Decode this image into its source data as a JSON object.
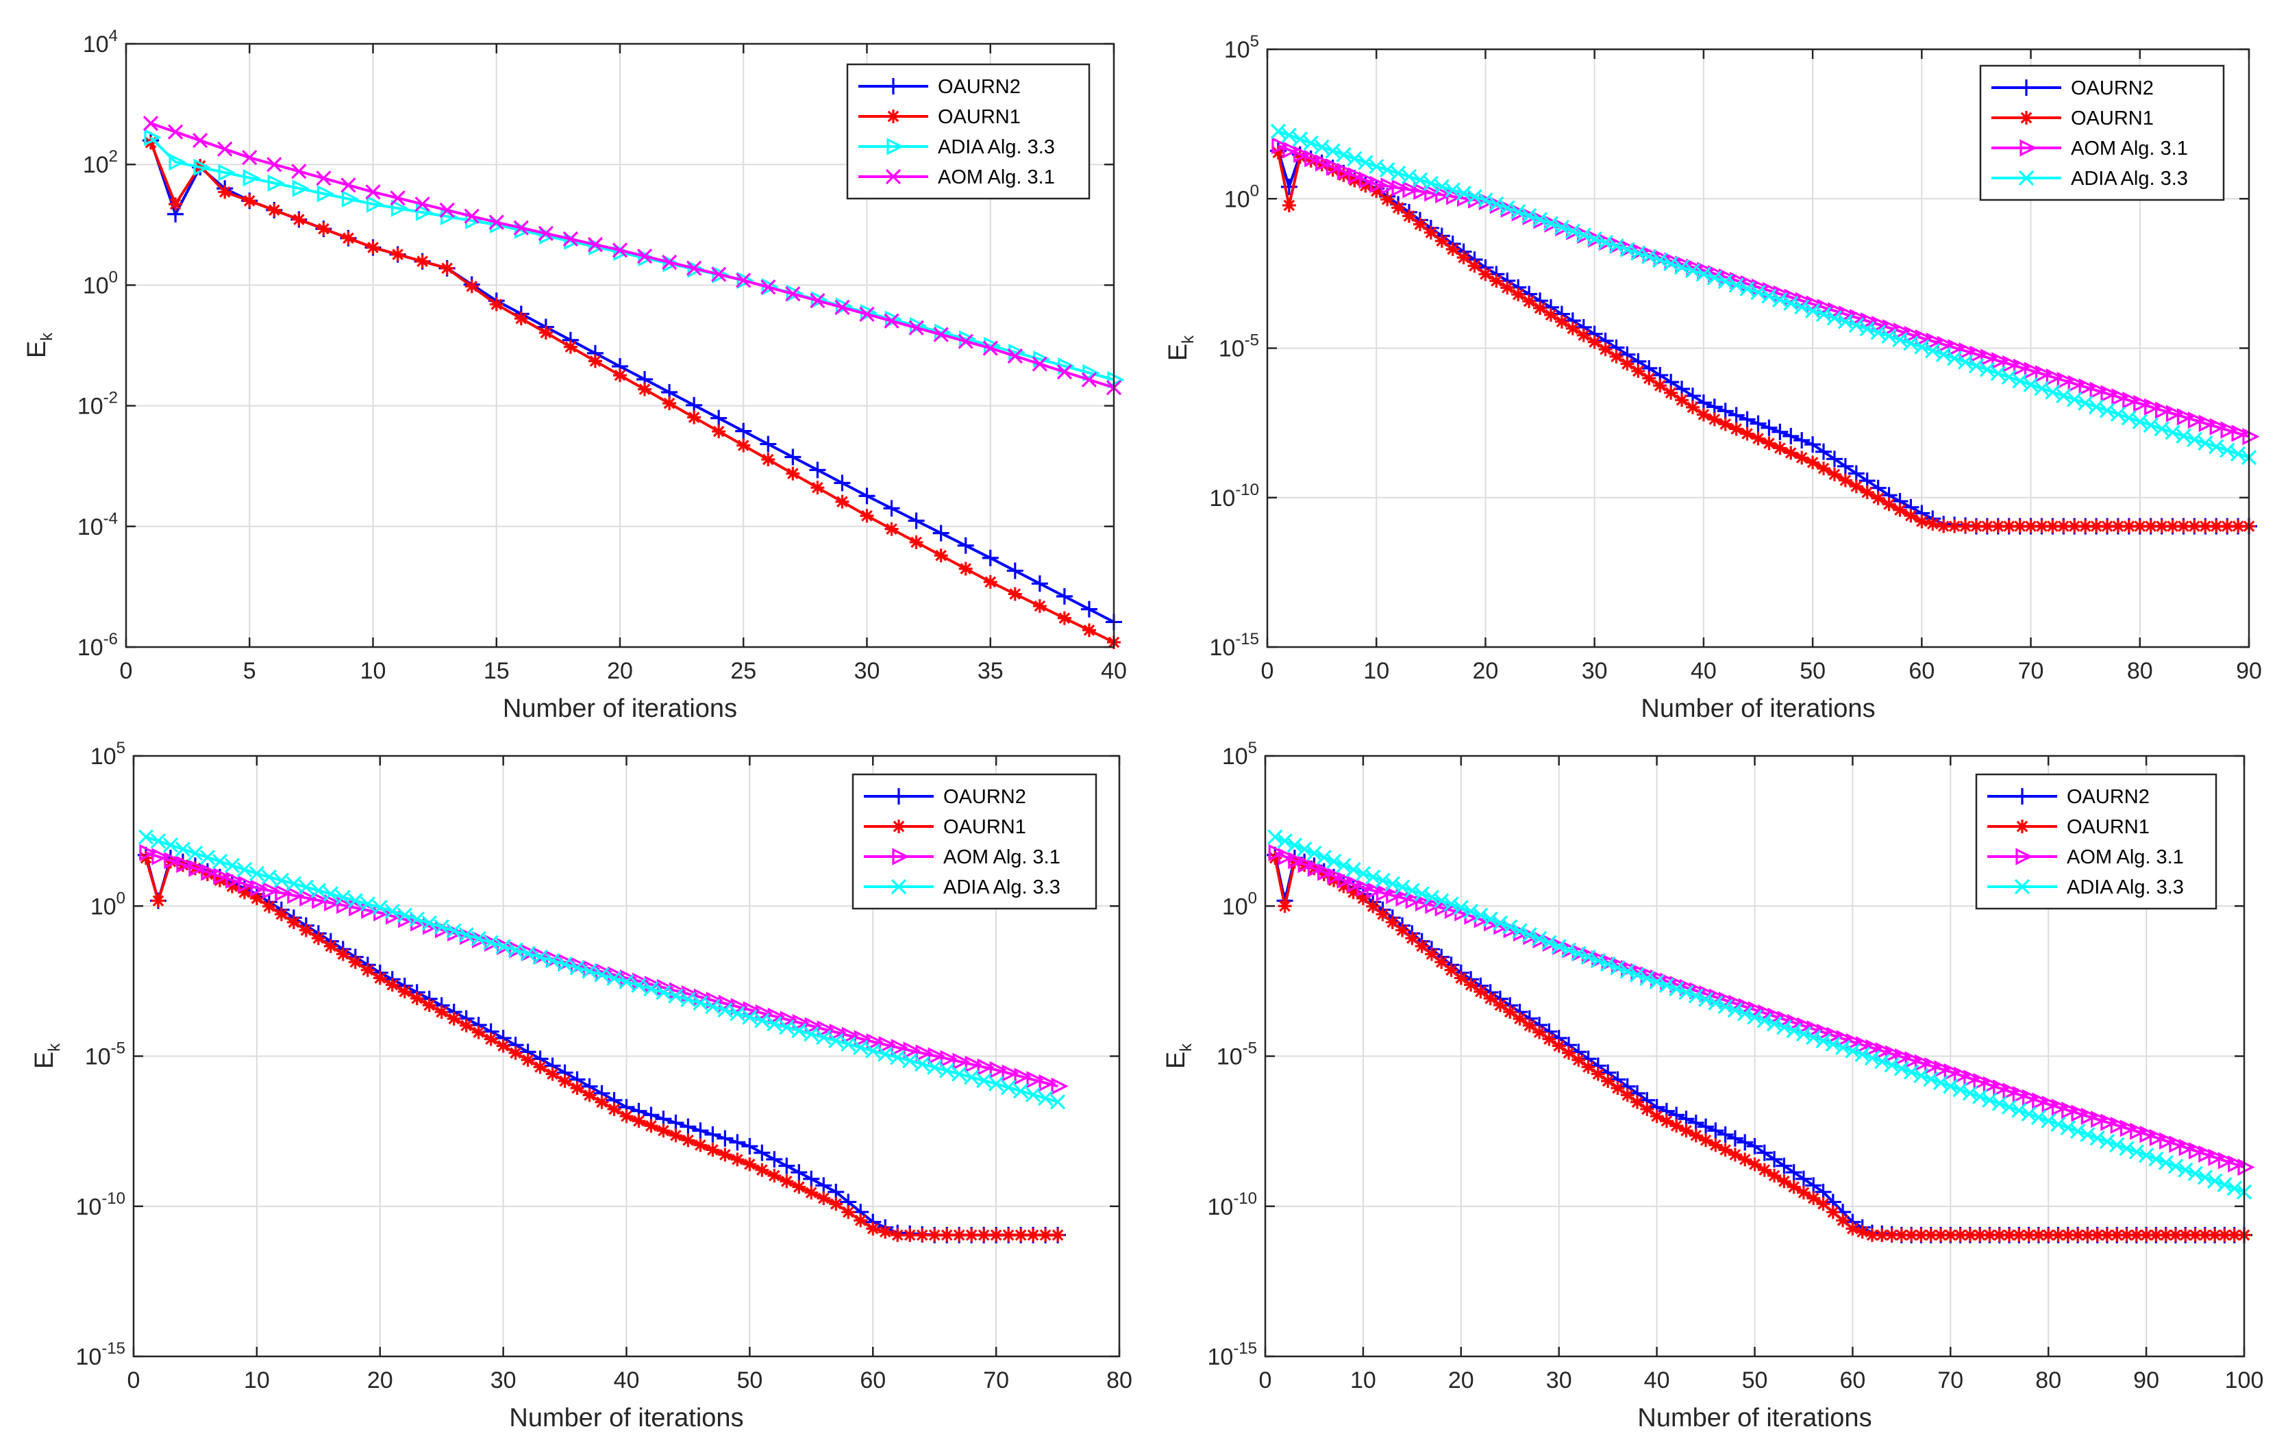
{
  "chart_data": [
    {
      "type": "line",
      "yscale": "log",
      "xlabel": "Number of iterations",
      "ylabel": "E",
      "ylabel_sub": "k",
      "xlim": [
        0,
        40
      ],
      "xticks": [
        0,
        5,
        10,
        15,
        20,
        25,
        30,
        35,
        40
      ],
      "yticks": [
        1e-06,
        0.0001,
        0.01,
        1,
        100,
        10000
      ],
      "ytick_labels": [
        {
          "base": "10",
          "exp": "-6"
        },
        {
          "base": "10",
          "exp": "-4"
        },
        {
          "base": "10",
          "exp": "-2"
        },
        {
          "base": "10",
          "exp": "0"
        },
        {
          "base": "10",
          "exp": "2"
        },
        {
          "base": "10",
          "exp": "4"
        }
      ],
      "grid": true,
      "legend_position": "top-right",
      "series": [
        {
          "name": "OAURN2",
          "color": "#0000ff",
          "marker": "plus",
          "x_start": 1,
          "x_end": 40,
          "anchors": [
            [
              1,
              250
            ],
            [
              2,
              15
            ],
            [
              3,
              90
            ],
            [
              4,
              40
            ],
            [
              5,
              25
            ],
            [
              10,
              4.2
            ],
            [
              13,
              1.9
            ],
            [
              15,
              0.55
            ],
            [
              20,
              0.045
            ],
            [
              25,
              0.0038
            ],
            [
              30,
              0.00032
            ],
            [
              35,
              3e-05
            ],
            [
              40,
              2.6e-06
            ]
          ]
        },
        {
          "name": "OAURN1",
          "color": "#ff0000",
          "marker": "asterisk",
          "x_start": 1,
          "x_end": 40,
          "anchors": [
            [
              1,
              230
            ],
            [
              2,
              22
            ],
            [
              3,
              95
            ],
            [
              4,
              35
            ],
            [
              5,
              25
            ],
            [
              10,
              4.2
            ],
            [
              13,
              1.9
            ],
            [
              15,
              0.48
            ],
            [
              20,
              0.032
            ],
            [
              25,
              0.0022
            ],
            [
              30,
              0.00015
            ],
            [
              35,
              1.2e-05
            ],
            [
              40,
              1.2e-06
            ]
          ]
        },
        {
          "name": "ADIA Alg. 3.3",
          "color": "#00ffff",
          "marker": "triangle-right",
          "x_start": 1,
          "x_end": 40,
          "anchors": [
            [
              1,
              280
            ],
            [
              2,
              110
            ],
            [
              5,
              60
            ],
            [
              10,
              22
            ],
            [
              15,
              10
            ],
            [
              20,
              3.5
            ],
            [
              25,
              1.2
            ],
            [
              30,
              0.35
            ],
            [
              35,
              0.1
            ],
            [
              40,
              0.027
            ]
          ]
        },
        {
          "name": "AOM Alg. 3.1",
          "color": "#ff00ff",
          "marker": "x",
          "x_start": 1,
          "x_end": 40,
          "anchors": [
            [
              1,
              480
            ],
            [
              5,
              130
            ],
            [
              10,
              35
            ],
            [
              15,
              11
            ],
            [
              20,
              3.8
            ],
            [
              25,
              1.2
            ],
            [
              30,
              0.33
            ],
            [
              35,
              0.09
            ],
            [
              40,
              0.02
            ]
          ]
        }
      ]
    },
    {
      "type": "line",
      "yscale": "log",
      "xlabel": "Number of iterations",
      "ylabel": "E",
      "ylabel_sub": "k",
      "xlim": [
        0,
        90
      ],
      "xticks": [
        0,
        10,
        20,
        30,
        40,
        50,
        60,
        70,
        80,
        90
      ],
      "yticks": [
        1e-15,
        1e-10,
        1e-05,
        1,
        100000
      ],
      "ytick_labels": [
        {
          "base": "10",
          "exp": "-15"
        },
        {
          "base": "10",
          "exp": "-10"
        },
        {
          "base": "10",
          "exp": "-5"
        },
        {
          "base": "10",
          "exp": "0"
        },
        {
          "base": "10",
          "exp": "5"
        }
      ],
      "grid": true,
      "legend_position": "top-right",
      "series": [
        {
          "name": "OAURN2",
          "color": "#0000ff",
          "marker": "plus",
          "x_start": 1,
          "x_end": 90,
          "anchors": [
            [
              1,
              40
            ],
            [
              2,
              2.5
            ],
            [
              3,
              30
            ],
            [
              5,
              16
            ],
            [
              10,
              2.2
            ],
            [
              20,
              0.005
            ],
            [
              30,
              3e-05
            ],
            [
              40,
              1.5e-07
            ],
            [
              50,
              6e-09
            ],
            [
              57,
              1.2e-10
            ],
            [
              60,
              3e-11
            ],
            [
              62,
              1.3e-11
            ],
            [
              65,
              1.1e-11
            ],
            [
              90,
              1.1e-11
            ]
          ]
        },
        {
          "name": "OAURN1",
          "color": "#ff0000",
          "marker": "asterisk",
          "x_start": 1,
          "x_end": 90,
          "anchors": [
            [
              1,
              35
            ],
            [
              2,
              0.6
            ],
            [
              3,
              25
            ],
            [
              5,
              14
            ],
            [
              10,
              1.8
            ],
            [
              20,
              0.003
            ],
            [
              30,
              1.6e-05
            ],
            [
              40,
              6e-08
            ],
            [
              50,
              1.5e-09
            ],
            [
              57,
              6e-11
            ],
            [
              60,
              1.6e-11
            ],
            [
              62,
              1.1e-11
            ],
            [
              90,
              1.1e-11
            ]
          ]
        },
        {
          "name": "AOM Alg. 3.1",
          "color": "#ff00ff",
          "marker": "triangle-right",
          "x_start": 1,
          "x_end": 90,
          "anchors": [
            [
              1,
              60
            ],
            [
              10,
              3
            ],
            [
              20,
              0.8
            ],
            [
              30,
              0.045
            ],
            [
              40,
              0.004
            ],
            [
              50,
              0.0003
            ],
            [
              60,
              2.2e-05
            ],
            [
              70,
              1.8e-06
            ],
            [
              80,
              1.4e-07
            ],
            [
              90,
              1.1e-08
            ]
          ]
        },
        {
          "name": "ADIA Alg. 3.3",
          "color": "#00ffff",
          "marker": "x",
          "x_start": 1,
          "x_end": 90,
          "anchors": [
            [
              1,
              180
            ],
            [
              10,
              12
            ],
            [
              20,
              0.9
            ],
            [
              30,
              0.045
            ],
            [
              40,
              0.003
            ],
            [
              50,
              0.00018
            ],
            [
              60,
              1.1e-05
            ],
            [
              70,
              6e-07
            ],
            [
              80,
              3.5e-08
            ],
            [
              90,
              2.2e-09
            ]
          ]
        }
      ]
    },
    {
      "type": "line",
      "yscale": "log",
      "xlabel": "Number of iterations",
      "ylabel": "E",
      "ylabel_sub": "k",
      "xlim": [
        0,
        80
      ],
      "xticks": [
        0,
        10,
        20,
        30,
        40,
        50,
        60,
        70,
        80
      ],
      "yticks": [
        1e-15,
        1e-10,
        1e-05,
        1,
        100000
      ],
      "ytick_labels": [
        {
          "base": "10",
          "exp": "-15"
        },
        {
          "base": "10",
          "exp": "-10"
        },
        {
          "base": "10",
          "exp": "-5"
        },
        {
          "base": "10",
          "exp": "0"
        },
        {
          "base": "10",
          "exp": "5"
        }
      ],
      "grid": true,
      "legend_position": "top-right",
      "series": [
        {
          "name": "OAURN2",
          "color": "#0000ff",
          "marker": "plus",
          "x_start": 1,
          "x_end": 75,
          "anchors": [
            [
              1,
              50
            ],
            [
              2,
              1.5
            ],
            [
              3,
              40
            ],
            [
              5,
              22
            ],
            [
              10,
              2.5
            ],
            [
              20,
              0.006
            ],
            [
              30,
              4e-05
            ],
            [
              40,
              2e-07
            ],
            [
              50,
              1e-08
            ],
            [
              57,
              3e-10
            ],
            [
              60,
              3e-11
            ],
            [
              62,
              1.3e-11
            ],
            [
              65,
              1.1e-11
            ],
            [
              75,
              1.1e-11
            ]
          ]
        },
        {
          "name": "OAURN1",
          "color": "#ff0000",
          "marker": "asterisk",
          "x_start": 1,
          "x_end": 75,
          "anchors": [
            [
              1,
              40
            ],
            [
              2,
              1.5
            ],
            [
              3,
              30
            ],
            [
              5,
              18
            ],
            [
              10,
              1.8
            ],
            [
              20,
              0.004
            ],
            [
              30,
              2.2e-05
            ],
            [
              40,
              1e-07
            ],
            [
              50,
              2.5e-09
            ],
            [
              57,
              1.2e-10
            ],
            [
              60,
              1.8e-11
            ],
            [
              62,
              1.1e-11
            ],
            [
              75,
              1.1e-11
            ]
          ]
        },
        {
          "name": "AOM Alg. 3.1",
          "color": "#ff00ff",
          "marker": "triangle-right",
          "x_start": 1,
          "x_end": 75,
          "anchors": [
            [
              1,
              60
            ],
            [
              10,
              4
            ],
            [
              20,
              0.6
            ],
            [
              30,
              0.045
            ],
            [
              40,
              0.004
            ],
            [
              50,
              0.00035
            ],
            [
              60,
              3e-05
            ],
            [
              70,
              3.5e-06
            ],
            [
              75,
              1e-06
            ]
          ]
        },
        {
          "name": "ADIA Alg. 3.3",
          "color": "#00ffff",
          "marker": "x",
          "x_start": 1,
          "x_end": 75,
          "anchors": [
            [
              1,
              200
            ],
            [
              10,
              12
            ],
            [
              20,
              0.9
            ],
            [
              30,
              0.045
            ],
            [
              40,
              0.003
            ],
            [
              50,
              0.0002
            ],
            [
              60,
              1.5e-05
            ],
            [
              70,
              1.2e-06
            ],
            [
              75,
              3e-07
            ]
          ]
        }
      ]
    },
    {
      "type": "line",
      "yscale": "log",
      "xlabel": "Number of iterations",
      "ylabel": "E",
      "ylabel_sub": "k",
      "xlim": [
        0,
        100
      ],
      "xticks": [
        0,
        10,
        20,
        30,
        40,
        50,
        60,
        70,
        80,
        90,
        100
      ],
      "yticks": [
        1e-15,
        1e-10,
        1e-05,
        1,
        100000
      ],
      "ytick_labels": [
        {
          "base": "10",
          "exp": "-15"
        },
        {
          "base": "10",
          "exp": "-10"
        },
        {
          "base": "10",
          "exp": "-5"
        },
        {
          "base": "10",
          "exp": "0"
        },
        {
          "base": "10",
          "exp": "5"
        }
      ],
      "grid": true,
      "legend_position": "top-right",
      "series": [
        {
          "name": "OAURN2",
          "color": "#0000ff",
          "marker": "plus",
          "x_start": 1,
          "x_end": 100,
          "anchors": [
            [
              1,
              50
            ],
            [
              2,
              1.5
            ],
            [
              3,
              40
            ],
            [
              5,
              22
            ],
            [
              10,
              2.5
            ],
            [
              20,
              0.006
            ],
            [
              30,
              4e-05
            ],
            [
              40,
              2e-07
            ],
            [
              50,
              1e-08
            ],
            [
              57,
              3e-10
            ],
            [
              60,
              3e-11
            ],
            [
              62,
              1.3e-11
            ],
            [
              65,
              1.1e-11
            ],
            [
              100,
              1.1e-11
            ]
          ]
        },
        {
          "name": "OAURN1",
          "color": "#ff0000",
          "marker": "asterisk",
          "x_start": 1,
          "x_end": 100,
          "anchors": [
            [
              1,
              40
            ],
            [
              2,
              1
            ],
            [
              3,
              30
            ],
            [
              5,
              18
            ],
            [
              10,
              1.8
            ],
            [
              20,
              0.004
            ],
            [
              30,
              2.2e-05
            ],
            [
              40,
              1e-07
            ],
            [
              50,
              2.5e-09
            ],
            [
              57,
              1.2e-10
            ],
            [
              60,
              1.8e-11
            ],
            [
              62,
              1.1e-11
            ],
            [
              100,
              1.1e-11
            ]
          ]
        },
        {
          "name": "AOM Alg. 3.1",
          "color": "#ff00ff",
          "marker": "triangle-right",
          "x_start": 1,
          "x_end": 100,
          "anchors": [
            [
              1,
              60
            ],
            [
              10,
              4
            ],
            [
              20,
              0.6
            ],
            [
              30,
              0.045
            ],
            [
              40,
              0.004
            ],
            [
              50,
              0.00035
            ],
            [
              60,
              3e-05
            ],
            [
              70,
              3e-06
            ],
            [
              80,
              2.5e-07
            ],
            [
              90,
              2.5e-08
            ],
            [
              100,
              2e-09
            ]
          ]
        },
        {
          "name": "ADIA Alg. 3.3",
          "color": "#00ffff",
          "marker": "x",
          "x_start": 1,
          "x_end": 100,
          "anchors": [
            [
              1,
              200
            ],
            [
              10,
              12
            ],
            [
              20,
              0.9
            ],
            [
              30,
              0.045
            ],
            [
              40,
              0.003
            ],
            [
              50,
              0.0002
            ],
            [
              60,
              1.5e-05
            ],
            [
              70,
              1e-06
            ],
            [
              80,
              7e-08
            ],
            [
              90,
              5e-09
            ],
            [
              100,
              3e-10
            ]
          ]
        }
      ]
    }
  ]
}
